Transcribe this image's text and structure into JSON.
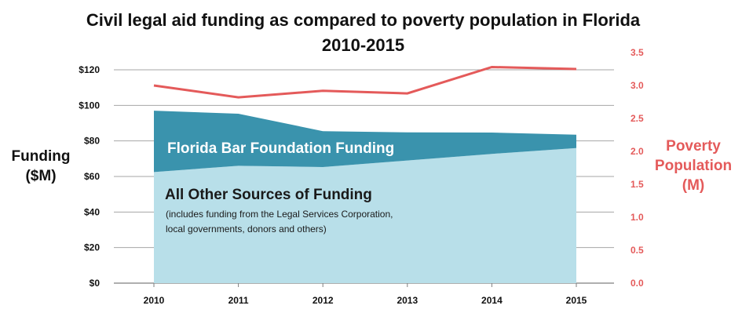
{
  "title_line1": "Civil legal aid funding as compared to poverty population in Florida",
  "title_line2": "2010-2015",
  "left_axis_title_line1": "Funding",
  "left_axis_title_line2": "($M)",
  "right_axis_title_line1": "Poverty",
  "right_axis_title_line2": "Population",
  "right_axis_title_line3": "(M)",
  "colors": {
    "florida_bar": "#3a93ad",
    "other_sources": "#b8dfe9",
    "poverty_line": "#e45a5a",
    "grid": "#a6a6a6"
  },
  "chart_data": {
    "type": "area",
    "title": "Civil legal aid funding as compared to poverty population in Florida 2010-2015",
    "x": [
      2010,
      2011,
      2012,
      2013,
      2014,
      2015
    ],
    "x_tick_labels": [
      "2010",
      "2011",
      "2012",
      "2013",
      "2014",
      "2015"
    ],
    "ylabel": "Funding ($M)",
    "ylim": [
      0,
      120
    ],
    "y_tick_labels": [
      "$0",
      "$20",
      "$40",
      "$60",
      "$80",
      "$100",
      "$120"
    ],
    "y2label": "Poverty Population (M)",
    "y2lim": [
      0,
      3.5
    ],
    "y2_tick_labels": [
      "0.0",
      "0.5",
      "1.0",
      "1.5",
      "2.0",
      "2.5",
      "3.0",
      "3.5"
    ],
    "grid": true,
    "series": [
      {
        "name": "All Other Sources of Funding",
        "note_line1": "(includes funding from  the Legal Services Corporation,",
        "note_line2": "local governments, donors and others)",
        "axis": "left",
        "stacked": true,
        "values": [
          62.5,
          66,
          65.3,
          69,
          72.7,
          76
        ]
      },
      {
        "name": "Florida Bar Foundation Funding",
        "axis": "left",
        "stacked": true,
        "values": [
          34.5,
          29.3,
          20.2,
          15.8,
          12,
          7.5
        ]
      },
      {
        "name": "Poverty Population",
        "axis": "right",
        "type": "line",
        "values": [
          3.0,
          2.82,
          2.92,
          2.88,
          3.28,
          3.25
        ]
      }
    ]
  }
}
